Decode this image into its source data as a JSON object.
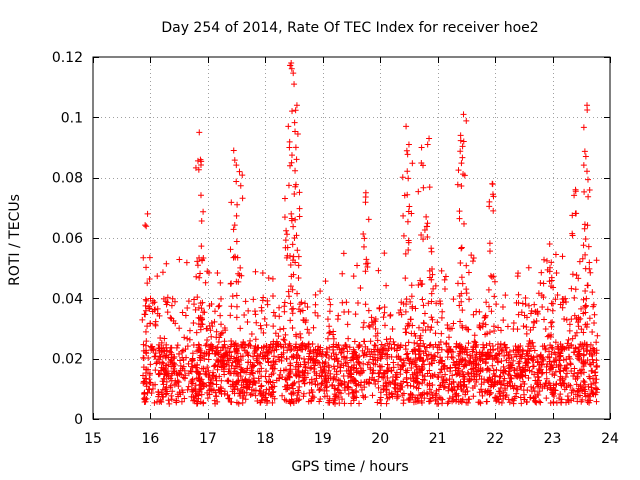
{
  "chart_data": {
    "type": "scatter",
    "title": "Day 254 of 2014, Rate Of TEC Index for receiver hoe2",
    "xlabel": "GPS time / hours",
    "ylabel": "ROTI / TECUs",
    "xlim": [
      15,
      24
    ],
    "ylim": [
      0,
      0.12
    ],
    "xticks": [
      15,
      16,
      17,
      18,
      19,
      20,
      21,
      22,
      23,
      24
    ],
    "yticks": [
      0,
      0.02,
      0.04,
      0.06,
      0.08,
      0.1,
      0.12
    ],
    "xtick_labels": [
      "15",
      "16",
      "17",
      "18",
      "19",
      "20",
      "21",
      "22",
      "23",
      "24"
    ],
    "ytick_labels": [
      "0",
      "0.02",
      "0.04",
      "0.06",
      "0.08",
      "0.1",
      "0.12"
    ],
    "grid": true,
    "marker": "+",
    "color": "#ff0000",
    "series": [
      {
        "name": "ROTI",
        "x_range": [
          15.85,
          23.78
        ],
        "typical_range": [
          0.003,
          0.045
        ],
        "peaks": [
          {
            "x": 15.95,
            "y": 0.068
          },
          {
            "x": 16.85,
            "y": 0.095
          },
          {
            "x": 16.87,
            "y": 0.086
          },
          {
            "x": 17.45,
            "y": 0.089
          },
          {
            "x": 17.55,
            "y": 0.082
          },
          {
            "x": 18.45,
            "y": 0.118
          },
          {
            "x": 18.5,
            "y": 0.111
          },
          {
            "x": 18.55,
            "y": 0.104
          },
          {
            "x": 18.4,
            "y": 0.097
          },
          {
            "x": 19.75,
            "y": 0.075
          },
          {
            "x": 20.45,
            "y": 0.097
          },
          {
            "x": 20.5,
            "y": 0.091
          },
          {
            "x": 20.72,
            "y": 0.09
          },
          {
            "x": 20.85,
            "y": 0.093
          },
          {
            "x": 21.45,
            "y": 0.101
          },
          {
            "x": 21.4,
            "y": 0.094
          },
          {
            "x": 21.95,
            "y": 0.078
          },
          {
            "x": 22.95,
            "y": 0.058
          },
          {
            "x": 23.4,
            "y": 0.076
          },
          {
            "x": 23.6,
            "y": 0.104
          },
          {
            "x": 23.58,
            "y": 0.087
          }
        ]
      }
    ]
  }
}
